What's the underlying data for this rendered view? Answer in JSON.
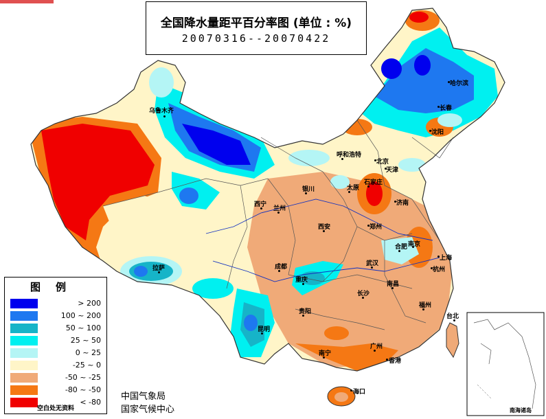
{
  "title": {
    "main": "全国降水量距平百分率图 (单位 : %)",
    "date_range": "20070316--20070422"
  },
  "legend": {
    "title": "图例",
    "items": [
      {
        "label": "> 200",
        "color": "#0000ee"
      },
      {
        "label": "100 ~ 200",
        "color": "#1e78f0"
      },
      {
        "label": "50 ~ 100",
        "color": "#16b4c8"
      },
      {
        "label": "25 ~ 50",
        "color": "#00f0f0"
      },
      {
        "label": "0 ~ 25",
        "color": "#b4f5f5"
      },
      {
        "label": "-25 ~ 0",
        "color": "#fff5c8"
      },
      {
        "label": "-50 ~ -25",
        "color": "#f0aa78"
      },
      {
        "label": "-80 ~ -50",
        "color": "#f57814"
      },
      {
        "label": "< -80",
        "color": "#f00000"
      }
    ],
    "footer": "空白处无资料"
  },
  "credits": {
    "line1": "中国气象局",
    "line2": "国家气候中心"
  },
  "inset": {
    "label": "南海诸岛"
  },
  "cities": [
    {
      "id": "harbin",
      "label": "哈尔滨"
    },
    {
      "id": "changchun",
      "label": "长春"
    },
    {
      "id": "shenyang",
      "label": "沈阳"
    },
    {
      "id": "urumqi",
      "label": "乌鲁木齐"
    },
    {
      "id": "hohhot",
      "label": "呼和浩特"
    },
    {
      "id": "beijing",
      "label": "北京"
    },
    {
      "id": "tianjin",
      "label": "天津"
    },
    {
      "id": "shijiazhuang",
      "label": "石家庄"
    },
    {
      "id": "taiyuan",
      "label": "太原"
    },
    {
      "id": "jinan",
      "label": "济南"
    },
    {
      "id": "yinchuan",
      "label": "银川"
    },
    {
      "id": "xining",
      "label": "西宁"
    },
    {
      "id": "lanzhou",
      "label": "兰州"
    },
    {
      "id": "xian",
      "label": "西安"
    },
    {
      "id": "zhengzhou",
      "label": "郑州"
    },
    {
      "id": "hefei",
      "label": "合肥"
    },
    {
      "id": "nanjing",
      "label": "南京"
    },
    {
      "id": "shanghai",
      "label": "上海"
    },
    {
      "id": "hangzhou",
      "label": "杭州"
    },
    {
      "id": "wuhan",
      "label": "武汉"
    },
    {
      "id": "chengdu",
      "label": "成都"
    },
    {
      "id": "chongqing",
      "label": "重庆"
    },
    {
      "id": "lhasa",
      "label": "拉萨"
    },
    {
      "id": "nanchang",
      "label": "南昌"
    },
    {
      "id": "changsha",
      "label": "长沙"
    },
    {
      "id": "fuzhou",
      "label": "福州"
    },
    {
      "id": "guiyang",
      "label": "贵阳"
    },
    {
      "id": "kunming",
      "label": "昆明"
    },
    {
      "id": "taipei",
      "label": "台北"
    },
    {
      "id": "nanning",
      "label": "南宁"
    },
    {
      "id": "guangzhou",
      "label": "广州"
    },
    {
      "id": "hongkong",
      "label": "香港"
    },
    {
      "id": "haikou",
      "label": "海口"
    }
  ]
}
